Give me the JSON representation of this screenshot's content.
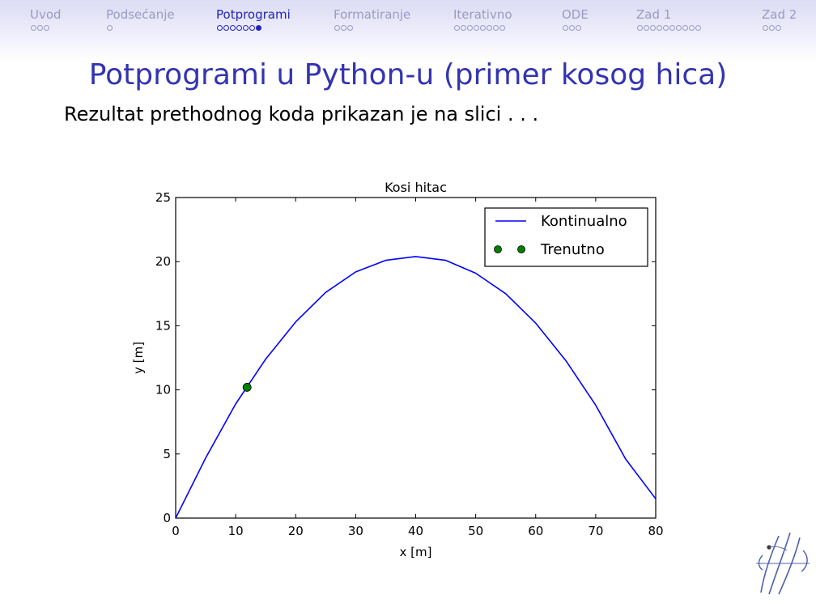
{
  "nav": {
    "sections": [
      {
        "label": "Uvod",
        "dots": 3,
        "filled": 0,
        "active": false
      },
      {
        "label": "Podsećanje",
        "dots": 1,
        "filled": 0,
        "active": false
      },
      {
        "label": "Potprogrami",
        "dots": 7,
        "filled": 1,
        "active": true
      },
      {
        "label": "Formatiranje",
        "dots": 3,
        "filled": 0,
        "active": false
      },
      {
        "label": "Iterativno",
        "dots": 8,
        "filled": 0,
        "active": false
      },
      {
        "label": "ODE",
        "dots": 3,
        "filled": 0,
        "active": false
      },
      {
        "label": "Zad 1",
        "dots": 10,
        "filled": 0,
        "active": false
      },
      {
        "label": "Zad 2",
        "dots": 3,
        "filled": 0,
        "active": false
      }
    ]
  },
  "slide": {
    "title": "Potprogrami u Python-u (primer kosog hica)",
    "subtitle": "Rezultat prethodnog koda prikazan je na slici . . ."
  },
  "colors": {
    "nav_inactive": "#9a9ac4",
    "nav_active": "#2424b8",
    "title": "#3434b2",
    "line": "#0000ff",
    "marker": "#008000"
  },
  "chart_data": {
    "type": "line",
    "title": "Kosi hitac",
    "xlabel": "x [m]",
    "ylabel": "y [m]",
    "xlim": [
      0,
      80
    ],
    "ylim": [
      0,
      25
    ],
    "xticks": [
      0,
      10,
      20,
      30,
      40,
      50,
      60,
      70,
      80
    ],
    "yticks": [
      0,
      5,
      10,
      15,
      20,
      25
    ],
    "legend_position": "top-right",
    "series": [
      {
        "name": "Kontinualno",
        "style": "line",
        "x": [
          0,
          5,
          10,
          15,
          20,
          25,
          30,
          35,
          40,
          45,
          50,
          55,
          60,
          65,
          70,
          75,
          80
        ],
        "y": [
          0,
          4.7,
          8.9,
          12.4,
          15.3,
          17.6,
          19.2,
          20.1,
          20.4,
          20.1,
          19.1,
          17.5,
          15.2,
          12.3,
          8.8,
          4.6,
          1.5
        ]
      },
      {
        "name": "Trenutno",
        "style": "marker",
        "x": [
          11.9
        ],
        "y": [
          10.2
        ]
      }
    ]
  }
}
